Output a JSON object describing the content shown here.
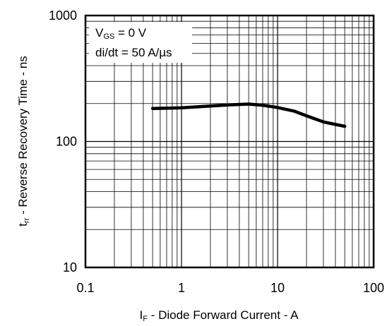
{
  "chart_data": {
    "type": "line",
    "title": "",
    "x_scale": "log",
    "y_scale": "log",
    "xlim": [
      0.1,
      100
    ],
    "ylim": [
      10,
      1000
    ],
    "grid": true,
    "x_ticks": [
      "0.1",
      "1",
      "10",
      "100"
    ],
    "y_ticks": [
      "10",
      "100",
      "1000"
    ],
    "xlabel": {
      "main": "I",
      "sub": "F",
      "rest": " - Diode Forward Current - A"
    },
    "ylabel": {
      "main": "t",
      "sub": "rr",
      "rest": " - Reverse Recovery Time - ns"
    },
    "annotations": [
      {
        "main": "V",
        "sub": "GS",
        "rest": " = 0 V"
      },
      {
        "main": "di/dt = 50 A/µs",
        "sub": "",
        "rest": ""
      }
    ],
    "series": [
      {
        "x": [
          0.5,
          1,
          2,
          3,
          5,
          7,
          10,
          15,
          20,
          30,
          50
        ],
        "values": [
          183,
          185,
          191,
          195,
          198,
          194,
          186,
          174,
          160,
          143,
          132
        ]
      }
    ]
  }
}
